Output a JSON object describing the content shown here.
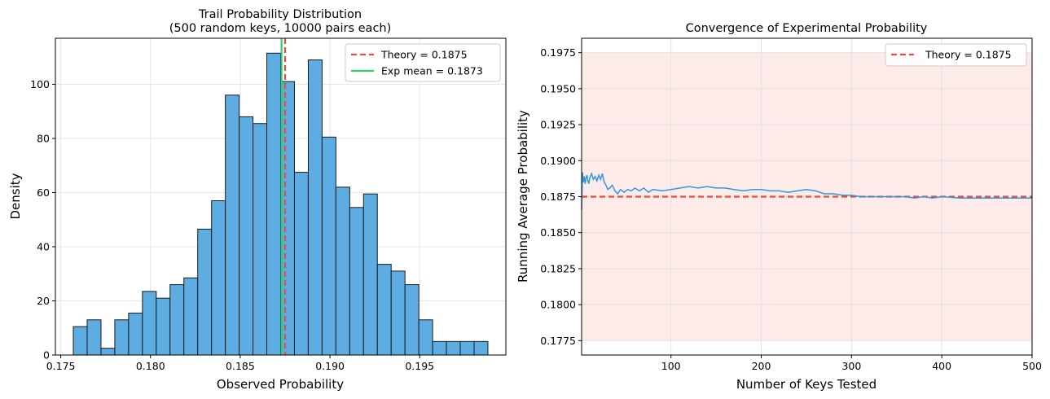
{
  "chart_data": [
    {
      "type": "histogram",
      "title": "Trail Probability Distribution",
      "subtitle": "(500 random keys, 10000 pairs each)",
      "xlabel": "Observed Probability",
      "ylabel": "Density",
      "xlim": [
        0.1747,
        0.1998
      ],
      "ylim": [
        0,
        117
      ],
      "xticks": [
        0.175,
        0.18,
        0.185,
        0.19,
        0.195
      ],
      "xtick_labels": [
        "0.175",
        "0.180",
        "0.185",
        "0.190",
        "0.195"
      ],
      "yticks": [
        0,
        20,
        40,
        60,
        80,
        100
      ],
      "ytick_labels": [
        "0",
        "20",
        "40",
        "60",
        "80",
        "100"
      ],
      "bin_start": 0.1757,
      "bin_width": 0.00077,
      "values": [
        10.5,
        13,
        2.5,
        13,
        15.5,
        23.5,
        21,
        26,
        28.5,
        46.5,
        57,
        96,
        88,
        85.5,
        111.5,
        101,
        67.5,
        109,
        80.5,
        62,
        54.5,
        59.5,
        33.5,
        31,
        26,
        13,
        5,
        5,
        5,
        5
      ],
      "bar_color": "#5DADE2",
      "theory_line": {
        "x": 0.1875,
        "label": "Theory = 0.1875",
        "color": "#E74C3C"
      },
      "mean_line": {
        "x": 0.1873,
        "label": "Exp mean = 0.1873",
        "color": "#2ECC71"
      },
      "legend": "upper right",
      "grid": true
    },
    {
      "type": "line",
      "title": "Convergence of Experimental Probability",
      "xlabel": "Number of Keys Tested",
      "ylabel": "Running Average Probability",
      "xlim": [
        1,
        500
      ],
      "ylim": [
        0.1765,
        0.1985
      ],
      "xticks": [
        100,
        200,
        300,
        400,
        500
      ],
      "xtick_labels": [
        "100",
        "200",
        "300",
        "400",
        "500"
      ],
      "yticks": [
        0.1775,
        0.18,
        0.1825,
        0.185,
        0.1875,
        0.19,
        0.1925,
        0.195,
        0.1975
      ],
      "ytick_labels": [
        "0.1775",
        "0.1800",
        "0.1825",
        "0.1850",
        "0.1875",
        "0.1900",
        "0.1925",
        "0.1950",
        "0.1975"
      ],
      "series": [
        {
          "color": "#3498DB",
          "x": [
            1,
            2,
            3,
            4,
            5,
            6,
            7,
            8,
            9,
            10,
            12,
            14,
            16,
            18,
            20,
            22,
            24,
            26,
            28,
            30,
            32,
            35,
            38,
            41,
            44,
            48,
            52,
            56,
            60,
            65,
            70,
            75,
            80,
            90,
            100,
            110,
            120,
            130,
            140,
            150,
            160,
            170,
            180,
            190,
            200,
            210,
            220,
            230,
            240,
            250,
            260,
            270,
            280,
            290,
            300,
            310,
            320,
            330,
            340,
            350,
            360,
            370,
            380,
            390,
            400,
            420,
            440,
            460,
            480,
            500
          ],
          "y": [
            0.1866,
            0.1892,
            0.1885,
            0.1889,
            0.1884,
            0.1888,
            0.189,
            0.1886,
            0.1884,
            0.1888,
            0.1891,
            0.1887,
            0.1889,
            0.1886,
            0.189,
            0.1887,
            0.1891,
            0.1885,
            0.1883,
            0.188,
            0.1881,
            0.1883,
            0.1879,
            0.1877,
            0.188,
            0.1878,
            0.188,
            0.1879,
            0.1881,
            0.1879,
            0.1881,
            0.1878,
            0.188,
            0.1879,
            0.188,
            0.1881,
            0.1882,
            0.1881,
            0.1882,
            0.1881,
            0.1881,
            0.188,
            0.1879,
            0.188,
            0.188,
            0.1879,
            0.1879,
            0.1878,
            0.1879,
            0.188,
            0.1879,
            0.1877,
            0.1877,
            0.1876,
            0.1876,
            0.1875,
            0.1875,
            0.1875,
            0.1875,
            0.1875,
            0.1875,
            0.1874,
            0.1875,
            0.1874,
            0.1875,
            0.1874,
            0.1874,
            0.1874,
            0.1874,
            0.1874
          ]
        }
      ],
      "theory_line": {
        "y": 0.1875,
        "label": "Theory = 0.1875",
        "color": "#E74C3C"
      },
      "shaded_band": {
        "y0": 0.1775,
        "y1": 0.1975,
        "color": "#F5B7B1"
      },
      "legend": "upper right",
      "grid": true
    }
  ]
}
